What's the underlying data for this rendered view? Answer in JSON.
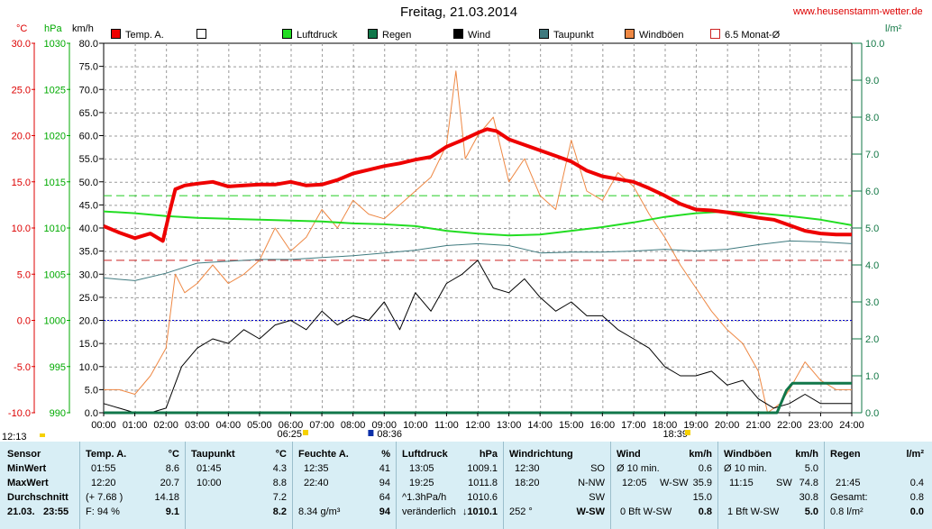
{
  "header": {
    "title": "Freitag, 21.03.2014",
    "site": "www.heusenstamm-wetter.de",
    "unit_c": "°C",
    "unit_hpa": "hPa",
    "unit_kmh": "km/h",
    "unit_lm2": "l/m²"
  },
  "legend": [
    {
      "label": "Temp. A.",
      "color": "#ee0000",
      "filled": true
    },
    {
      "label": "",
      "color": "#ffffff",
      "filled": false
    },
    {
      "label": "Luftdruck",
      "color": "#22dd22",
      "filled": true
    },
    {
      "label": "Regen",
      "color": "#11774a",
      "filled": true
    },
    {
      "label": "Wind",
      "color": "#000000",
      "filled": true
    },
    {
      "label": "Taupunkt",
      "color": "#3f7a7f",
      "filled": true
    },
    {
      "label": "Windböen",
      "color": "#ee8844",
      "filled": true
    },
    {
      "label": "6.5 Monat-Ø",
      "color": "#cc2222",
      "filled": false
    }
  ],
  "axes": {
    "temp_ticks": [
      "30.0",
      "25.0",
      "20.0",
      "15.0",
      "10.0",
      "5.0",
      "0.0",
      "-5.0",
      "-10.0"
    ],
    "hpa_ticks": [
      "1030",
      "1025",
      "1020",
      "1015",
      "1010",
      "1005",
      "1000",
      "995",
      "990"
    ],
    "kmh_ticks": [
      "80.0",
      "75.0",
      "70.0",
      "65.0",
      "60.0",
      "55.0",
      "50.0",
      "45.0",
      "40.0",
      "35.0",
      "30.0",
      "25.0",
      "20.0",
      "15.0",
      "10.0",
      "5.0",
      "0.0"
    ],
    "rain_ticks": [
      "10.0",
      "9.0",
      "8.0",
      "7.0",
      "6.0",
      "5.0",
      "4.0",
      "3.0",
      "2.0",
      "1.0",
      "0.0"
    ],
    "x_ticks": [
      "00:00",
      "01:00",
      "02:00",
      "03:00",
      "04:00",
      "05:00",
      "06:00",
      "07:00",
      "08:00",
      "09:00",
      "10:00",
      "11:00",
      "12:00",
      "13:00",
      "14:00",
      "15:00",
      "16:00",
      "17:00",
      "18:00",
      "19:00",
      "20:00",
      "21:00",
      "22:00",
      "23:00",
      "24:00"
    ],
    "sun_markers": [
      {
        "time": "12:13"
      },
      {
        "time": "06:25"
      },
      {
        "time": "08:36"
      },
      {
        "time": "18:39"
      }
    ]
  },
  "chart_data": {
    "type": "line",
    "title": "Freitag, 21.03.2014",
    "x_unit": "hour of day",
    "xlim": [
      0,
      24
    ],
    "temp_ylim": [
      -10,
      30
    ],
    "pressure_ylim": [
      990,
      1030
    ],
    "wind_ylim": [
      0,
      80
    ],
    "rain_ylim": [
      0,
      10
    ],
    "reference_lines": {
      "monthly_avg_temp": 6.5,
      "monthly_avg_pressure": 1013.5,
      "freezing_temp": 0.0
    },
    "series": [
      {
        "name": "Temp. A.",
        "axis": "temp",
        "color": "#ee0000",
        "x": [
          0,
          0.5,
          1,
          1.5,
          1.9,
          2.1,
          2.3,
          2.6,
          3,
          3.5,
          4,
          4.5,
          5,
          5.5,
          6,
          6.5,
          7,
          7.5,
          8,
          8.5,
          9,
          9.5,
          10,
          10.5,
          11,
          11.5,
          12,
          12.3,
          12.6,
          13,
          13.5,
          14,
          14.5,
          15,
          15.5,
          16,
          16.5,
          17,
          17.5,
          18,
          18.5,
          19,
          19.5,
          20,
          20.5,
          21,
          21.5,
          22,
          22.5,
          23,
          23.5,
          24
        ],
        "y": [
          10.2,
          9.5,
          8.9,
          9.4,
          8.6,
          11.5,
          14.2,
          14.6,
          14.8,
          15.0,
          14.5,
          14.6,
          14.7,
          14.7,
          15.0,
          14.6,
          14.7,
          15.2,
          15.9,
          16.3,
          16.7,
          17.0,
          17.4,
          17.7,
          18.8,
          19.5,
          20.3,
          20.7,
          20.5,
          19.6,
          19.0,
          18.4,
          17.8,
          17.2,
          16.2,
          15.6,
          15.3,
          15.0,
          14.3,
          13.5,
          12.6,
          12.0,
          11.9,
          11.7,
          11.4,
          11.1,
          10.9,
          10.3,
          9.7,
          9.4,
          9.3,
          9.3
        ]
      },
      {
        "name": "Luftdruck",
        "axis": "pressure",
        "color": "#22dd22",
        "x": [
          0,
          1,
          2,
          3,
          4,
          5,
          6,
          7,
          8,
          9,
          10,
          11,
          12,
          13,
          14,
          15,
          16,
          17,
          18,
          19,
          20,
          21,
          22,
          23,
          24
        ],
        "y": [
          1011.8,
          1011.6,
          1011.3,
          1011.1,
          1011.0,
          1010.9,
          1010.8,
          1010.7,
          1010.5,
          1010.4,
          1010.2,
          1009.7,
          1009.4,
          1009.2,
          1009.3,
          1009.7,
          1010.1,
          1010.6,
          1011.2,
          1011.6,
          1011.8,
          1011.6,
          1011.3,
          1010.9,
          1010.3
        ]
      },
      {
        "name": "Taupunkt",
        "axis": "temp",
        "color": "#3f7a7f",
        "x": [
          0,
          1,
          2,
          3,
          4,
          5,
          6,
          7,
          8,
          9,
          10,
          11,
          12,
          13,
          14,
          15,
          16,
          17,
          18,
          19,
          20,
          21,
          22,
          23,
          24
        ],
        "y": [
          4.6,
          4.3,
          5.1,
          6.2,
          6.4,
          6.6,
          6.6,
          6.8,
          7.0,
          7.3,
          7.6,
          8.1,
          8.3,
          8.1,
          7.3,
          7.4,
          7.4,
          7.5,
          7.7,
          7.5,
          7.7,
          8.2,
          8.6,
          8.5,
          8.3
        ]
      },
      {
        "name": "Wind",
        "axis": "wind",
        "color": "#000000",
        "x": [
          0,
          0.5,
          1,
          1.5,
          2,
          2.5,
          3,
          3.5,
          4,
          4.5,
          5,
          5.5,
          6,
          6.5,
          7,
          7.5,
          8,
          8.5,
          9,
          9.5,
          10,
          10.5,
          11,
          11.5,
          12,
          12.5,
          13,
          13.5,
          14,
          14.5,
          15,
          15.5,
          16,
          16.5,
          17,
          17.5,
          18,
          18.5,
          19,
          19.5,
          20,
          20.5,
          21,
          21.5,
          22,
          22.5,
          23,
          23.5,
          24
        ],
        "y": [
          2,
          1,
          0,
          0,
          1,
          10,
          14,
          16,
          15,
          18,
          16,
          19,
          20,
          18,
          22,
          19,
          21,
          20,
          24,
          18,
          26,
          22,
          28,
          30,
          33,
          27,
          26,
          29,
          25,
          22,
          24,
          21,
          21,
          18,
          16,
          14,
          10,
          8,
          8,
          9,
          6,
          7,
          3,
          1,
          2,
          4,
          2,
          2,
          2
        ]
      },
      {
        "name": "Windböen",
        "axis": "wind",
        "color": "#ee8844",
        "x": [
          0,
          0.5,
          1,
          1.5,
          2,
          2.3,
          2.6,
          3,
          3.5,
          4,
          4.5,
          5,
          5.5,
          6,
          6.5,
          7,
          7.5,
          8,
          8.5,
          9,
          9.5,
          10,
          10.5,
          11,
          11.3,
          11.6,
          12,
          12.5,
          13,
          13.5,
          14,
          14.5,
          15,
          15.5,
          16,
          16.5,
          17,
          17.5,
          18,
          18.5,
          19,
          19.5,
          20,
          20.5,
          21,
          21.3,
          21.7,
          22,
          22.5,
          23,
          23.5,
          24
        ],
        "y": [
          5,
          5,
          4,
          8,
          14,
          30,
          26,
          28,
          32,
          28,
          30,
          33,
          40,
          35,
          38,
          44,
          40,
          46,
          43,
          42,
          45,
          48,
          51,
          58,
          74,
          55,
          60,
          64,
          50,
          55,
          47,
          44,
          59,
          48,
          46,
          52,
          49,
          43,
          38,
          32,
          27,
          22,
          18,
          15,
          9,
          0,
          2,
          5,
          11,
          7,
          5,
          5
        ]
      },
      {
        "name": "Regen",
        "axis": "rain",
        "color": "#11774a",
        "x": [
          0,
          21.6,
          21.9,
          22.1,
          24
        ],
        "y": [
          0,
          0,
          0.6,
          0.8,
          0.8
        ]
      }
    ]
  },
  "stats": {
    "sensor": {
      "title": "Sensor",
      "rows": [
        "MinWert",
        "MaxWert",
        "Durchschnitt"
      ],
      "date": "21.03.",
      "time": "23:55"
    },
    "temp": {
      "title": "Temp. A.",
      "unit": "°C",
      "min_time": "01:55",
      "min": "8.6",
      "max_time": "12:20",
      "max": "20.7",
      "avg_note": "(+ 7.68 )",
      "avg": "14.18",
      "cur_note": "F: 94 %",
      "cur": "9.1"
    },
    "dew": {
      "title": "Taupunkt",
      "unit": "°C",
      "min_time": "01:45",
      "min": "4.3",
      "max_time": "10:00",
      "max": "8.8",
      "avg": "7.2",
      "cur": "8.2"
    },
    "hum": {
      "title": "Feuchte A.",
      "unit": "%",
      "min_time": "12:35",
      "min": "41",
      "max_time": "22:40",
      "max": "94",
      "avg": "64",
      "cur_note": "8.34 g/m³",
      "cur": "94"
    },
    "press": {
      "title": "Luftdruck",
      "unit": "hPa",
      "min_time": "13:05",
      "min": "1009.1",
      "max_time": "19:25",
      "max": "1011.8",
      "avg_note": "^1.3hPa/h",
      "avg": "1010.6",
      "cur_note": "veränderlich",
      "cur": "↓1010.1"
    },
    "dir": {
      "title": "Windrichtung",
      "min_time": "12:30",
      "min": "SO",
      "max_time": "18:20",
      "max": "N-NW",
      "avg": "SW",
      "cur_note": "252 °",
      "cur": "W-SW"
    },
    "wind": {
      "title": "Wind",
      "unit": "km/h",
      "min_note": "Ø 10 min.",
      "min": "0.6",
      "max_time": "12:05",
      "max_dir": "W-SW",
      "max": "35.9",
      "avg": "15.0",
      "cur_note": "0 Bft W-SW",
      "cur": "0.8"
    },
    "gust": {
      "title": "Windböen",
      "unit": "km/h",
      "min_note": "Ø 10 min.",
      "min": "5.0",
      "max_time": "11:15",
      "max_dir": "SW",
      "max": "74.8",
      "avg": "30.8",
      "cur_note": "1 Bft W-SW",
      "cur": "5.0"
    },
    "rain": {
      "title": "Regen",
      "unit": "l/m²",
      "max_time": "21:45",
      "max": "0.4",
      "total_label": "Gesamt:",
      "total": "0.8",
      "cur": "0.8 l/m²",
      "cur_val": "0.0"
    }
  }
}
